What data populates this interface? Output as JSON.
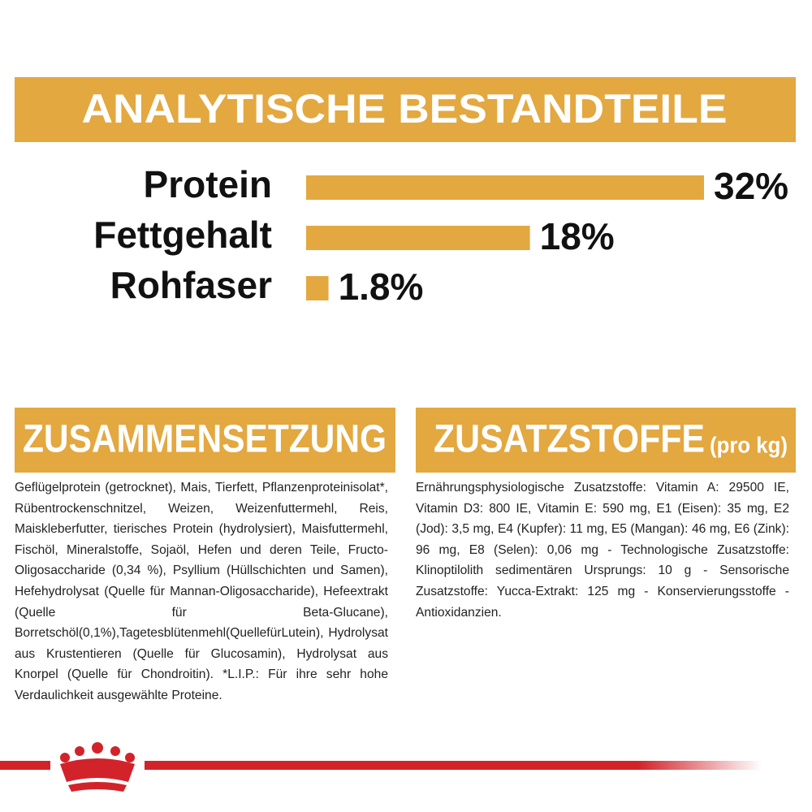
{
  "header": {
    "title": "ANALYTISCHE BESTANDTEILE"
  },
  "chart_data": {
    "type": "bar",
    "orientation": "horizontal",
    "categories": [
      "Protein",
      "Fettgehalt",
      "Rohfaser"
    ],
    "values": [
      32,
      18,
      1.8
    ],
    "value_labels": [
      "32%",
      "18%",
      "1.8%"
    ],
    "color": "#e3a840"
  },
  "composition": {
    "title": "ZUSAMMENSETZUNG",
    "text": "Geflügelprotein (getrocknet), Mais, Tierfett, Pflanzenproteinisolat*, Rübentrockenschnitzel, Weizen, Weizenfuttermehl, Reis, Maiskleberfutter, tierisches Protein (hydrolysiert), Maisfuttermehl, Fischöl, Mineralstoffe, Sojaöl, Hefen und deren Teile, Fructo-Oligosaccharide (0,34 %), Psyllium (Hüllschichten und Samen), Hefehydrolysat (Quelle für Mannan-Oligosaccharide), Hefeextrakt (Quelle für Beta-Glucane), Borretschöl(0,1%),Tagetesblütenmehl(QuellefürLutein), Hydrolysat aus Krustentieren (Quelle für Glucosamin), Hydrolysat aus Knorpel (Quelle für Chondroitin). *L.I.P.: Für ihre sehr hohe Verdaulichkeit ausgewählte Proteine."
  },
  "additives": {
    "title": "ZUSATZSTOFFE",
    "unit": "(pro kg)",
    "text": "Ernährungsphysiologische Zusatzstoffe: Vitamin A: 29500 IE, Vitamin D3: 800 IE, Vitamin E: 590 mg, E1 (Eisen): 35 mg, E2 (Jod): 3,5 mg, E4 (Kupfer): 11 mg, E5 (Mangan): 46 mg, E6 (Zink): 96 mg, E8 (Selen): 0,06 mg - Technologische Zusatzstoffe: Klinoptilolith sedimentären Ursprungs: 10 g - Sensorische Zusatzstoffe: Yucca-Extrakt: 125 mg - Konservierungsstoffe - Antioxidanzien."
  }
}
